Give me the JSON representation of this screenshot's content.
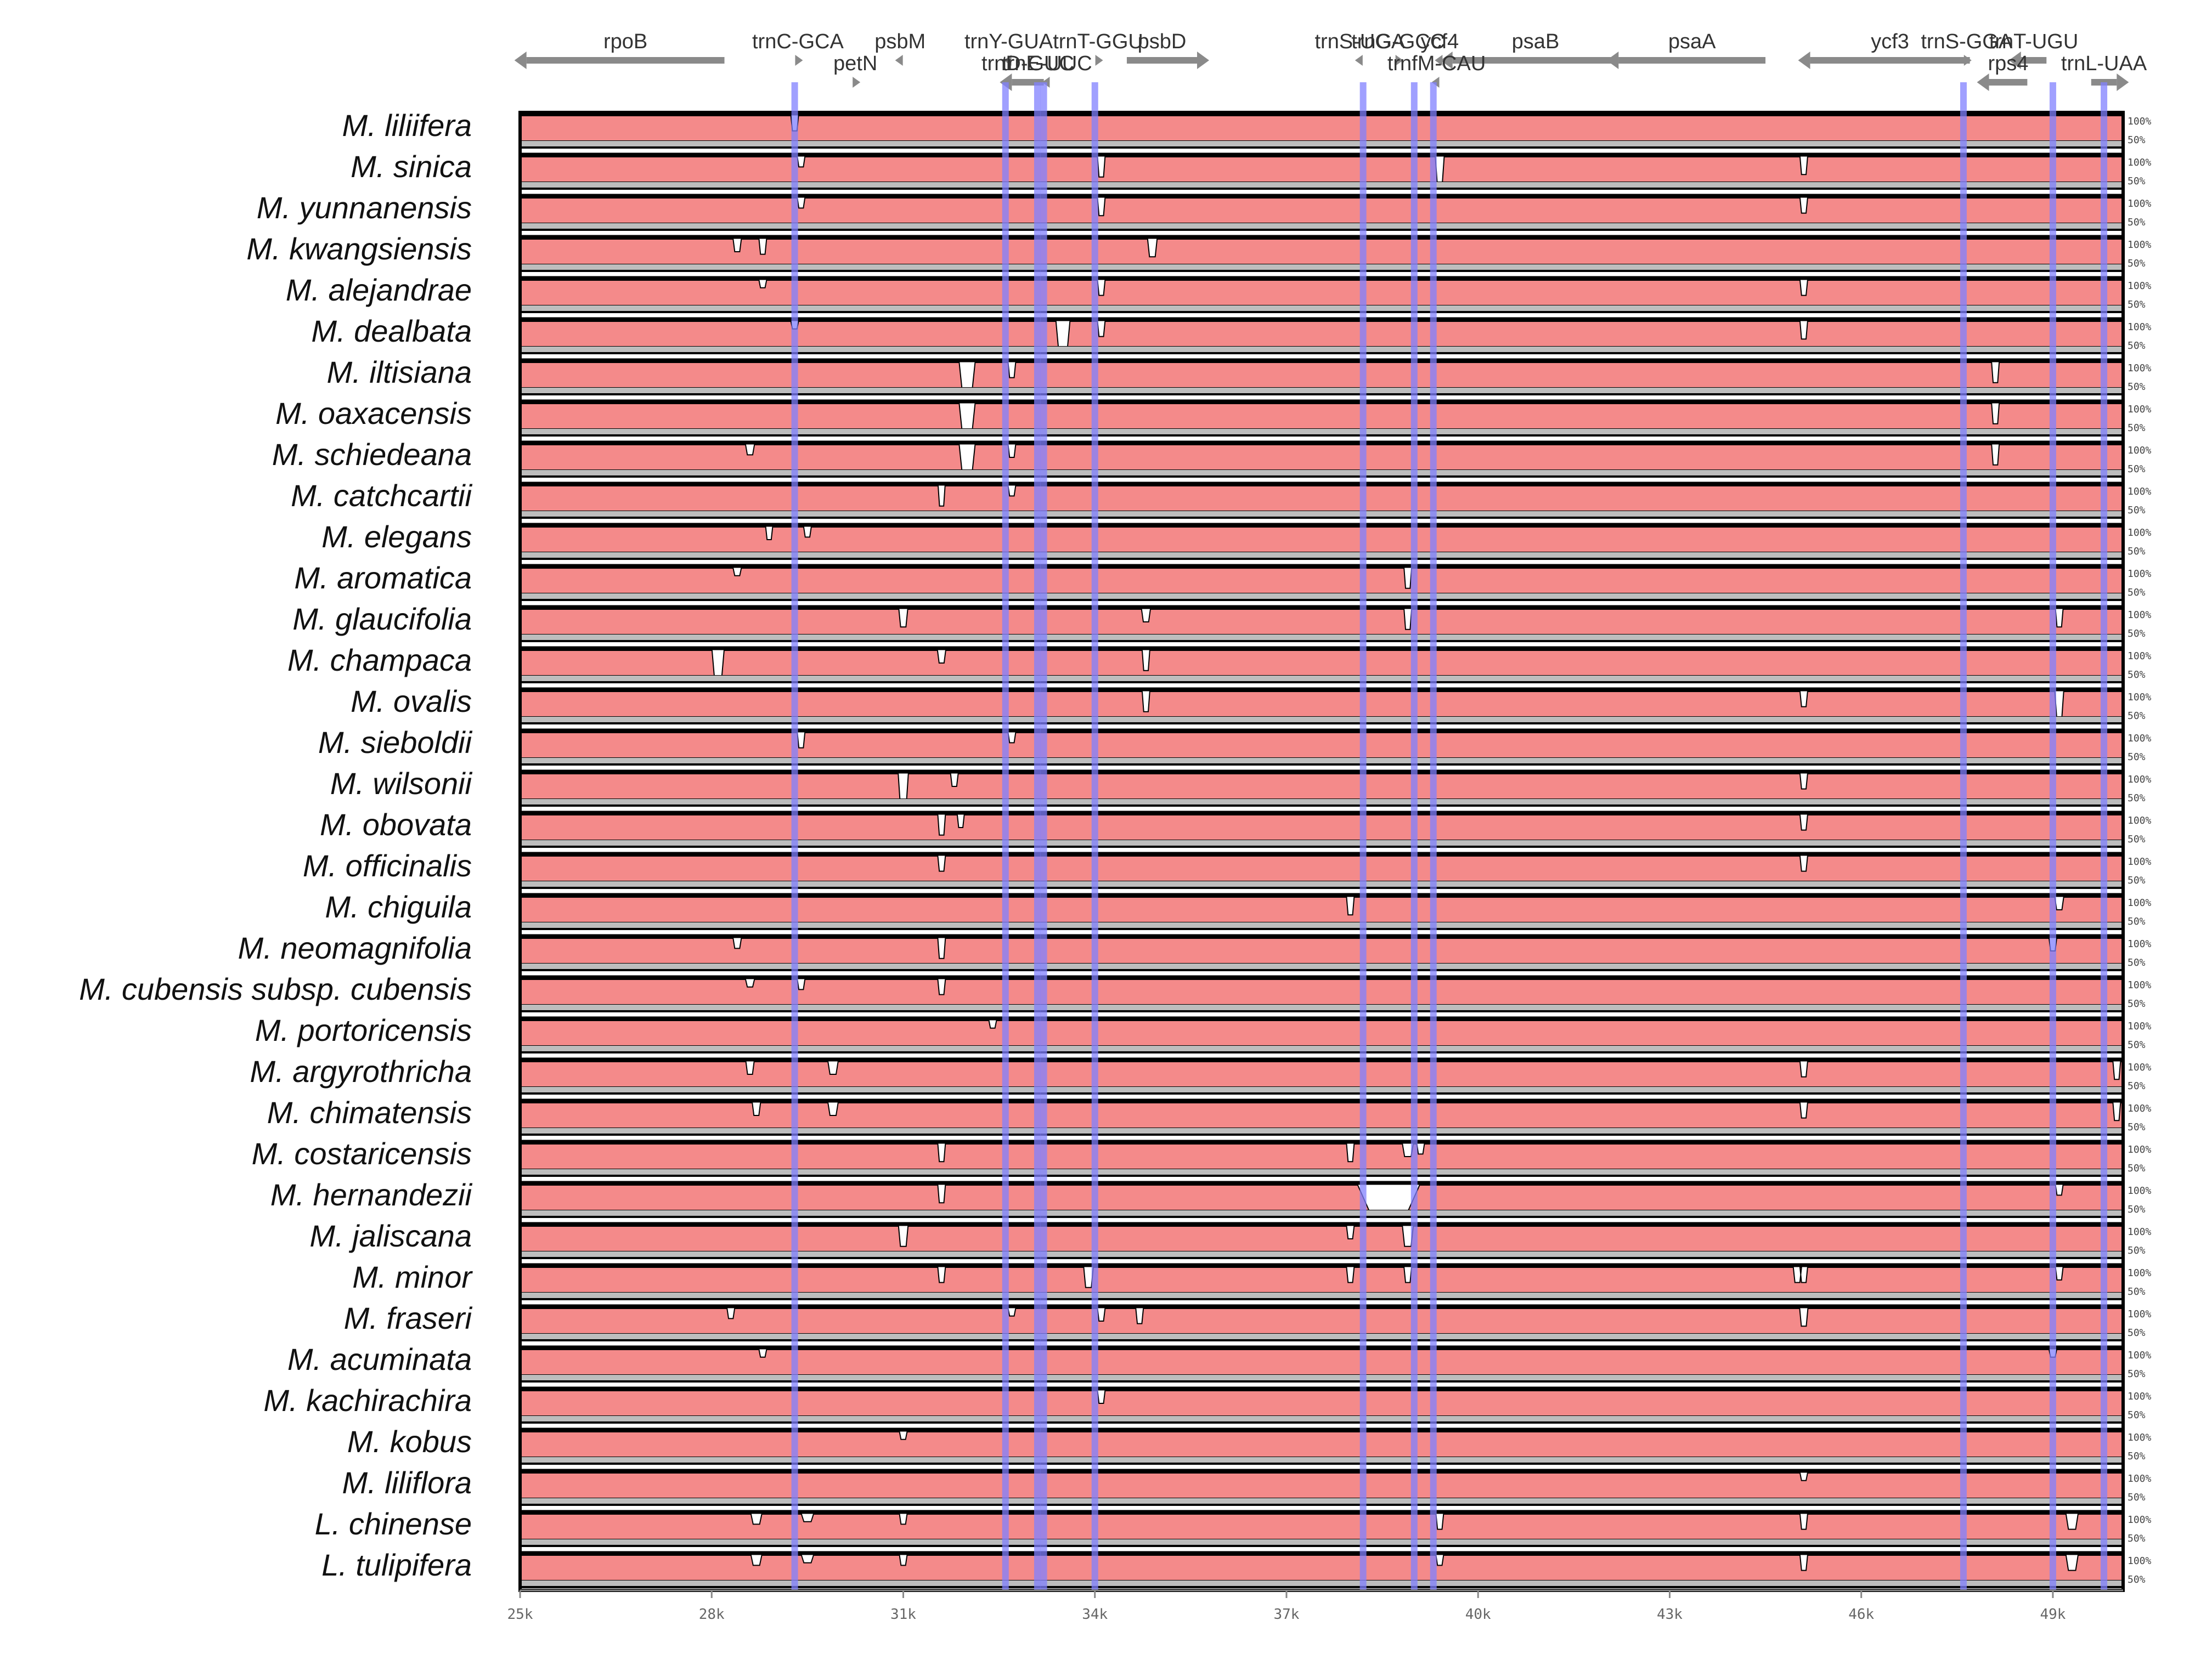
{
  "chart_data": {
    "type": "area",
    "title": "",
    "xlabel": "",
    "ylabel": "",
    "x_range_kb": [
      25,
      50.1
    ],
    "y_range_percent": [
      50,
      100
    ],
    "x_tick_labels": [
      "25k",
      "28k",
      "31k",
      "34k",
      "37k",
      "40k",
      "43k",
      "46k",
      "49k"
    ],
    "x_tick_values_kb": [
      25,
      28,
      31,
      34,
      37,
      40,
      43,
      46,
      49
    ],
    "percent_labels": [
      "100%",
      "50%"
    ],
    "fill_color": "#f48a8a",
    "gap_color": "#ffffff",
    "baseline_color": "#bdbdbd",
    "marker_color": "#8080ff",
    "species": [
      "M. liliifera",
      "M. sinica",
      "M. yunnanensis",
      "M. kwangsiensis",
      "M. alejandrae",
      "M. dealbata",
      "M. iltisiana",
      "M. oaxacensis",
      "M. schiedeana",
      "M. catchcartii",
      "M. elegans",
      "M. aromatica",
      "M. glaucifolia",
      "M. champaca",
      "M. ovalis",
      "M. sieboldii",
      "M. wilsonii",
      "M. obovata",
      "M. officinalis",
      "M. chiguila",
      "M. neomagnifolia",
      "M. cubensis subsp. cubensis",
      "M. portoricensis",
      "M. argyrothricha",
      "M. chimatensis",
      "M. costaricensis",
      "M. hernandezii",
      "M. jaliscana",
      "M. minor",
      "M. fraseri",
      "M. acuminata",
      "M. kachirachira",
      "M. kobus",
      "M. liliflora",
      "L. chinense",
      "L. tulipifera"
    ],
    "genes": [
      {
        "name": "rpoB",
        "start_kb": 25.1,
        "end_kb": 28.2,
        "strand": "-",
        "row": 0
      },
      {
        "name": "trnC-GCA",
        "start_kb": 29.3,
        "end_kb": 29.4,
        "strand": "+",
        "row": 0
      },
      {
        "name": "psbM",
        "start_kb": 30.9,
        "end_kb": 31.0,
        "strand": "-",
        "row": 0
      },
      {
        "name": "trnY-GUA",
        "start_kb": 32.6,
        "end_kb": 32.7,
        "strand": "-",
        "row": 0
      },
      {
        "name": "trnT-GGU",
        "start_kb": 34.0,
        "end_kb": 34.1,
        "strand": "+",
        "row": 0
      },
      {
        "name": "psbD",
        "start_kb": 34.5,
        "end_kb": 35.6,
        "strand": "+",
        "row": 0
      },
      {
        "name": "trnS-UGA",
        "start_kb": 38.1,
        "end_kb": 38.2,
        "strand": "-",
        "row": 0
      },
      {
        "name": "trnG-GCC",
        "start_kb": 38.7,
        "end_kb": 38.8,
        "strand": "+",
        "row": 0
      },
      {
        "name": "ycf4",
        "start_kb": 39.3,
        "end_kb": 39.5,
        "strand": "-",
        "row": 0
      },
      {
        "name": "psaB",
        "start_kb": 39.6,
        "end_kb": 42.2,
        "strand": "-",
        "row": 0
      },
      {
        "name": "psaA",
        "start_kb": 42.2,
        "end_kb": 44.5,
        "strand": "-",
        "row": 0
      },
      {
        "name": "ycf3",
        "start_kb": 45.2,
        "end_kb": 47.7,
        "strand": "-",
        "row": 0
      },
      {
        "name": "trnS-GGA",
        "start_kb": 47.6,
        "end_kb": 47.7,
        "strand": "+",
        "row": 0
      },
      {
        "name": "trnT-UGU",
        "start_kb": 48.5,
        "end_kb": 48.9,
        "strand": "-",
        "row": 0
      },
      {
        "name": "petN",
        "start_kb": 30.2,
        "end_kb": 30.3,
        "strand": "+",
        "row": 1
      },
      {
        "name": "trnD-GUC",
        "start_kb": 32.7,
        "end_kb": 33.2,
        "strand": "-",
        "row": 1
      },
      {
        "name": "trnE-UUC",
        "start_kb": 33.2,
        "end_kb": 33.3,
        "strand": "-",
        "row": 1
      },
      {
        "name": "trnfM-CAU",
        "start_kb": 39.3,
        "end_kb": 39.4,
        "strand": "-",
        "row": 1
      },
      {
        "name": "rps4",
        "start_kb": 48.0,
        "end_kb": 48.6,
        "strand": "-",
        "row": 1
      },
      {
        "name": "trnL-UAA",
        "start_kb": 49.6,
        "end_kb": 50.0,
        "strand": "+",
        "row": 1
      }
    ],
    "gene_label_overrides": [
      {
        "text": "trnS-GGA",
        "row": 0,
        "x_kb": 48.1
      },
      {
        "text": "trnT-UGU",
        "row": 0,
        "x_kb": 49.3
      }
    ],
    "exon_markers_kb": [
      29.3,
      32.6,
      33.1,
      33.2,
      34.0,
      38.2,
      39.0,
      39.3,
      47.6,
      49.0,
      49.8
    ],
    "dips": [
      [
        [
          29.3,
          0.6,
          0.05
        ]
      ],
      [
        [
          29.4,
          0.4,
          0.05
        ],
        [
          34.1,
          0.8,
          0.05
        ],
        [
          39.4,
          1.0,
          0.07
        ],
        [
          45.1,
          0.7,
          0.05
        ]
      ],
      [
        [
          29.4,
          0.4,
          0.05
        ],
        [
          34.1,
          0.7,
          0.05
        ],
        [
          45.1,
          0.6,
          0.05
        ]
      ],
      [
        [
          28.4,
          0.5,
          0.06
        ],
        [
          28.8,
          0.6,
          0.05
        ],
        [
          34.9,
          0.7,
          0.08
        ]
      ],
      [
        [
          28.8,
          0.3,
          0.05
        ],
        [
          34.1,
          0.6,
          0.05
        ],
        [
          45.1,
          0.6,
          0.05
        ]
      ],
      [
        [
          29.3,
          0.3,
          0.05
        ],
        [
          33.5,
          1.2,
          0.15
        ],
        [
          34.1,
          0.6,
          0.05
        ],
        [
          45.1,
          0.7,
          0.05
        ]
      ],
      [
        [
          32.0,
          1.2,
          0.18
        ],
        [
          32.7,
          0.6,
          0.05
        ],
        [
          48.1,
          0.8,
          0.05
        ]
      ],
      [
        [
          32.0,
          1.2,
          0.18
        ],
        [
          48.1,
          0.8,
          0.05
        ]
      ],
      [
        [
          28.6,
          0.4,
          0.07
        ],
        [
          32.0,
          1.2,
          0.18
        ],
        [
          32.7,
          0.5,
          0.05
        ],
        [
          48.1,
          0.8,
          0.05
        ]
      ],
      [
        [
          31.6,
          0.8,
          0.04
        ],
        [
          32.7,
          0.4,
          0.05
        ]
      ],
      [
        [
          28.9,
          0.5,
          0.04
        ],
        [
          29.5,
          0.4,
          0.05
        ]
      ],
      [
        [
          28.4,
          0.3,
          0.06
        ],
        [
          38.9,
          0.8,
          0.05
        ]
      ],
      [
        [
          31.0,
          0.7,
          0.07
        ],
        [
          34.8,
          0.5,
          0.07
        ],
        [
          38.9,
          0.8,
          0.05
        ],
        [
          49.1,
          0.7,
          0.05
        ]
      ],
      [
        [
          28.1,
          1.1,
          0.12
        ],
        [
          31.6,
          0.5,
          0.06
        ],
        [
          34.8,
          0.8,
          0.05
        ]
      ],
      [
        [
          34.8,
          0.8,
          0.05
        ],
        [
          45.1,
          0.6,
          0.05
        ],
        [
          49.1,
          1.0,
          0.07
        ]
      ],
      [
        [
          29.4,
          0.6,
          0.05
        ],
        [
          32.7,
          0.4,
          0.05
        ]
      ],
      [
        [
          31.0,
          1.2,
          0.09
        ],
        [
          31.8,
          0.5,
          0.05
        ],
        [
          45.1,
          0.6,
          0.05
        ]
      ],
      [
        [
          31.6,
          0.8,
          0.05
        ],
        [
          31.9,
          0.5,
          0.04
        ],
        [
          45.1,
          0.6,
          0.05
        ]
      ],
      [
        [
          31.6,
          0.6,
          0.05
        ],
        [
          45.1,
          0.6,
          0.05
        ]
      ],
      [
        [
          38.0,
          0.7,
          0.05
        ],
        [
          49.1,
          0.5,
          0.07
        ]
      ],
      [
        [
          28.4,
          0.4,
          0.06
        ],
        [
          31.6,
          0.8,
          0.05
        ],
        [
          49.0,
          0.5,
          0.05
        ]
      ],
      [
        [
          28.6,
          0.3,
          0.07
        ],
        [
          29.4,
          0.4,
          0.05
        ],
        [
          31.6,
          0.6,
          0.05
        ]
      ],
      [
        [
          32.4,
          0.3,
          0.05
        ]
      ],
      [
        [
          28.6,
          0.5,
          0.06
        ],
        [
          29.9,
          0.5,
          0.09
        ],
        [
          45.1,
          0.6,
          0.05
        ],
        [
          50.0,
          0.7,
          0.05
        ]
      ],
      [
        [
          28.7,
          0.5,
          0.06
        ],
        [
          29.9,
          0.5,
          0.09
        ],
        [
          45.1,
          0.6,
          0.05
        ],
        [
          50.0,
          0.7,
          0.05
        ]
      ],
      [
        [
          31.6,
          0.7,
          0.05
        ],
        [
          38.0,
          0.7,
          0.05
        ],
        [
          38.9,
          0.5,
          0.1
        ],
        [
          39.1,
          0.4,
          0.05
        ]
      ],
      [
        [
          31.6,
          0.7,
          0.05
        ],
        [
          38.6,
          1.1,
          0.9
        ],
        [
          49.1,
          0.4,
          0.05
        ]
      ],
      [
        [
          31.0,
          0.8,
          0.08
        ],
        [
          38.0,
          0.5,
          0.05
        ],
        [
          38.9,
          0.8,
          0.1
        ]
      ],
      [
        [
          31.6,
          0.6,
          0.05
        ],
        [
          33.9,
          0.8,
          0.08
        ],
        [
          38.0,
          0.6,
          0.05
        ],
        [
          38.9,
          0.6,
          0.05
        ],
        [
          45.0,
          0.6,
          0.06
        ],
        [
          45.1,
          0.6,
          0.05
        ],
        [
          49.1,
          0.5,
          0.05
        ]
      ],
      [
        [
          28.3,
          0.4,
          0.05
        ],
        [
          32.7,
          0.3,
          0.05
        ],
        [
          34.1,
          0.5,
          0.05
        ],
        [
          34.7,
          0.6,
          0.05
        ],
        [
          45.1,
          0.7,
          0.06
        ]
      ],
      [
        [
          28.8,
          0.3,
          0.05
        ],
        [
          49.0,
          0.3,
          0.05
        ]
      ],
      [
        [
          34.1,
          0.5,
          0.05
        ]
      ],
      [
        [
          31.0,
          0.3,
          0.05
        ]
      ],
      [
        [
          45.1,
          0.3,
          0.05
        ]
      ],
      [
        [
          28.7,
          0.4,
          0.1
        ],
        [
          29.5,
          0.3,
          0.12
        ],
        [
          31.0,
          0.4,
          0.05
        ],
        [
          39.4,
          0.6,
          0.05
        ],
        [
          45.1,
          0.6,
          0.05
        ],
        [
          49.3,
          0.6,
          0.12
        ]
      ],
      [
        [
          28.7,
          0.4,
          0.1
        ],
        [
          29.5,
          0.3,
          0.12
        ],
        [
          31.0,
          0.4,
          0.05
        ],
        [
          39.4,
          0.4,
          0.05
        ],
        [
          45.1,
          0.6,
          0.05
        ],
        [
          49.3,
          0.6,
          0.12
        ]
      ]
    ]
  }
}
